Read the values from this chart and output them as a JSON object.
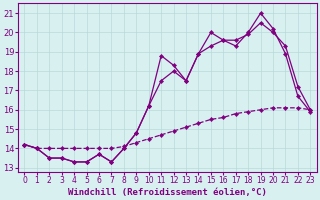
{
  "x": [
    0,
    1,
    2,
    3,
    4,
    5,
    6,
    7,
    8,
    9,
    10,
    11,
    12,
    13,
    14,
    15,
    16,
    17,
    18,
    19,
    20,
    21,
    22,
    23
  ],
  "line1": [
    14.2,
    14.0,
    13.5,
    13.5,
    13.3,
    13.3,
    13.7,
    13.3,
    14.0,
    14.8,
    16.2,
    18.8,
    18.3,
    17.5,
    18.9,
    20.0,
    19.6,
    19.3,
    20.0,
    21.0,
    20.2,
    18.9,
    16.7,
    15.9
  ],
  "line2": [
    14.2,
    14.0,
    13.5,
    13.5,
    13.3,
    13.3,
    13.7,
    13.3,
    14.0,
    14.8,
    16.2,
    17.5,
    18.0,
    17.5,
    18.9,
    19.3,
    19.6,
    19.6,
    19.9,
    20.5,
    20.0,
    19.3,
    17.2,
    16.0
  ],
  "line3": [
    14.2,
    14.0,
    14.0,
    14.0,
    14.0,
    14.0,
    14.0,
    14.0,
    14.1,
    14.3,
    14.5,
    14.7,
    14.9,
    15.1,
    15.3,
    15.5,
    15.6,
    15.8,
    15.9,
    16.0,
    16.1,
    16.1,
    16.1,
    16.0
  ],
  "line_color": "#800080",
  "bg_color": "#d8f0f0",
  "grid_color": "#b8dada",
  "xlabel": "Windchill (Refroidissement éolien,°C)",
  "ylabel_ticks": [
    13,
    14,
    15,
    16,
    17,
    18,
    19,
    20,
    21
  ],
  "xlim": [
    -0.5,
    23.5
  ],
  "ylim": [
    12.8,
    21.5
  ],
  "label_fontsize": 6.5,
  "tick_fontsize": 6.0
}
